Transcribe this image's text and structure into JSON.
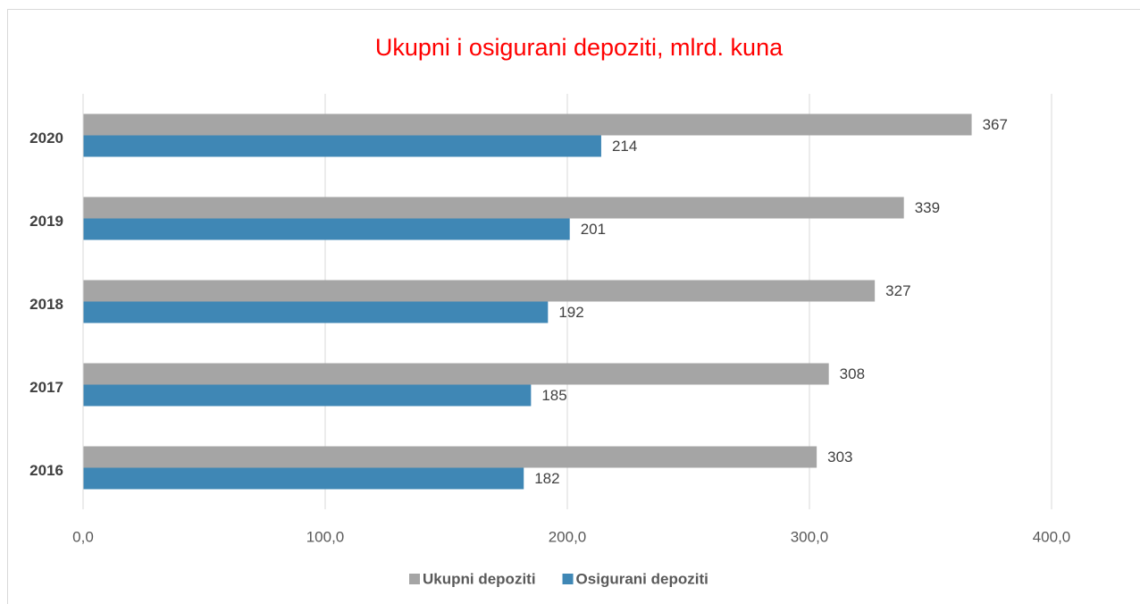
{
  "chart_data": {
    "type": "bar",
    "orientation": "horizontal",
    "title": "Ukupni i osigurani depoziti, mlrd. kuna",
    "categories": [
      "2016",
      "2017",
      "2018",
      "2019",
      "2020"
    ],
    "series": [
      {
        "name": "Ukupni depoziti",
        "color": "#a5a5a5",
        "values": [
          303,
          308,
          327,
          339,
          367
        ]
      },
      {
        "name": "Osigurani depoziti",
        "color": "#3f87b5",
        "values": [
          182,
          185,
          192,
          201,
          214
        ]
      }
    ],
    "xlim": [
      0,
      400
    ],
    "xticks": [
      {
        "value": 0,
        "label": "0,0"
      },
      {
        "value": 100,
        "label": "100,0"
      },
      {
        "value": 200,
        "label": "200,0"
      },
      {
        "value": 300,
        "label": "300,0"
      },
      {
        "value": 400,
        "label": "400,0"
      }
    ],
    "grid": true,
    "legend": "bottom",
    "title_color": "#ff0000"
  }
}
